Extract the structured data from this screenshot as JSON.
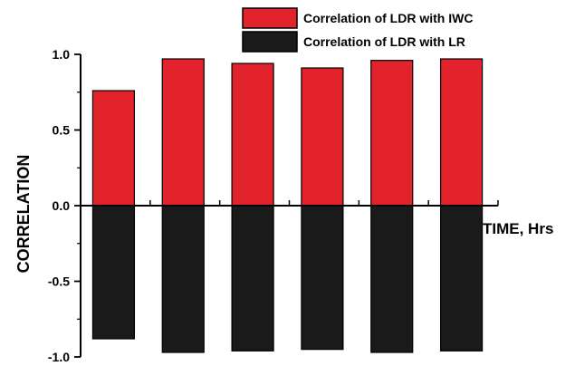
{
  "chart_data": {
    "type": "bar",
    "categories": [
      "",
      "",
      "",
      "",
      "",
      ""
    ],
    "series": [
      {
        "name": "Correlation of LDR with IWC",
        "color": "#e3232b",
        "values": [
          0.76,
          0.97,
          0.94,
          0.91,
          0.96,
          0.97
        ]
      },
      {
        "name": "Correlation of LDR with LR",
        "color": "#1a1a1a",
        "values": [
          -0.88,
          -0.97,
          -0.96,
          -0.95,
          -0.97,
          -0.96
        ]
      }
    ],
    "xlabel": "TIME, Hrs",
    "ylabel": "CORRELATION",
    "ylim": [
      -1.0,
      1.0
    ],
    "yticks": [
      "-1.0",
      "-0.5",
      "0.0",
      "0.5",
      "1.0"
    ],
    "grid": false,
    "legend": "top-right"
  }
}
